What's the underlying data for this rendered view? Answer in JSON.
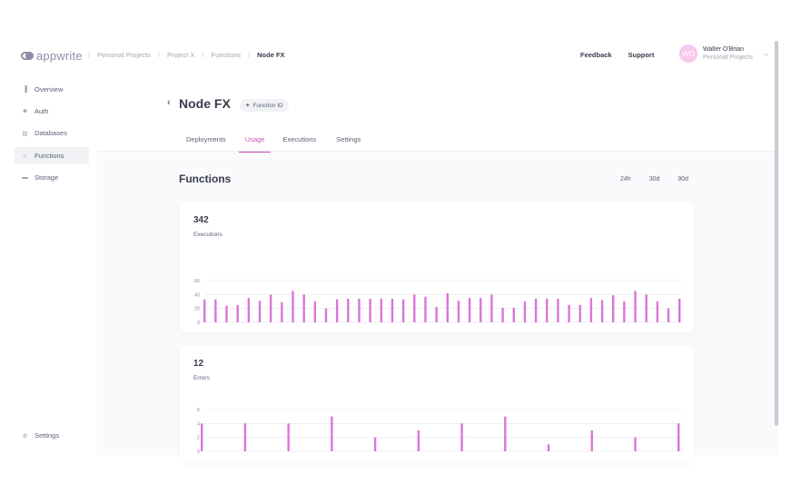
{
  "app": {
    "logo_text": "appwrite"
  },
  "breadcrumbs": [
    "Personal Projects",
    "Project X",
    "Functions",
    "Node FX"
  ],
  "header": {
    "feedback": "Feedback",
    "support": "Support"
  },
  "user": {
    "initials": "WO",
    "name": "Walter O'Brian",
    "org": "Personal Projects"
  },
  "sidebar": {
    "items": [
      {
        "label": "Overview",
        "icon": "chart-icon"
      },
      {
        "label": "Auth",
        "icon": "users-icon"
      },
      {
        "label": "Databases",
        "icon": "database-icon"
      },
      {
        "label": "Functions",
        "icon": "lightning-icon",
        "active": true
      },
      {
        "label": "Storage",
        "icon": "folder-icon"
      }
    ],
    "settings": "Settings"
  },
  "page": {
    "title": "Node FX",
    "function_id": "Function ID",
    "tabs": [
      "Deployments",
      "Usage",
      "Executions",
      "Settings"
    ],
    "active_tab": "Usage",
    "section_title": "Functions",
    "periods": [
      "24h",
      "30d",
      "90d"
    ]
  },
  "colors": {
    "accent": "#d053b3",
    "bar": "#da76d6"
  },
  "chart_data": [
    {
      "type": "bar",
      "title": "342",
      "subtitle": "Executions",
      "ylim": [
        0,
        60
      ],
      "yticks": [
        0,
        20,
        40,
        60
      ],
      "grid": true,
      "values": [
        33,
        33,
        24,
        25,
        35,
        31,
        40,
        29,
        45,
        40,
        30,
        20,
        33,
        34,
        34,
        34,
        34,
        34,
        33,
        40,
        37,
        22,
        42,
        31,
        35,
        35,
        40,
        21,
        21,
        30,
        34,
        34,
        34,
        25,
        25,
        35,
        32,
        39,
        30,
        45,
        40,
        30,
        20,
        34
      ]
    },
    {
      "type": "bar",
      "title": "12",
      "subtitle": "Errors",
      "ylim": [
        0,
        6
      ],
      "yticks": [
        0,
        2,
        4,
        6
      ],
      "grid": true,
      "values": [
        4,
        0,
        0,
        0,
        4,
        0,
        0,
        0,
        4,
        0,
        0,
        0,
        5,
        0,
        0,
        0,
        2,
        0,
        0,
        0,
        3,
        0,
        0,
        0,
        4,
        0,
        0,
        0,
        5,
        0,
        0,
        0,
        1,
        0,
        0,
        0,
        3,
        0,
        0,
        0,
        2,
        0,
        0,
        0,
        4
      ]
    }
  ]
}
